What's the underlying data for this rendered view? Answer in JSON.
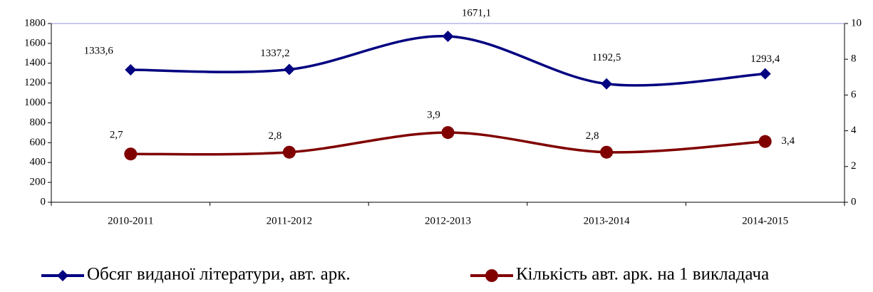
{
  "chart_data": {
    "type": "line",
    "categories": [
      "2010-2011",
      "2011-2012",
      "2012-2013",
      "2013-2014",
      "2014-2015"
    ],
    "series": [
      {
        "name": "Обсяг виданої літератури, авт. арк.",
        "color": "#000080",
        "marker": "diamond",
        "values": [
          1333.6,
          1337.2,
          1671.1,
          1192.5,
          1293.4
        ],
        "value_labels": [
          "1333,6",
          "1337,2",
          "1671,1",
          "1192,5",
          "1293,4"
        ]
      },
      {
        "name": "Кількість авт. арк. на 1 викладача",
        "color": "#800000",
        "marker": "circle",
        "axis": "y2",
        "values": [
          2.7,
          2.8,
          3.9,
          2.8,
          3.4
        ],
        "value_labels": [
          "2,7",
          "2,8",
          "3,9",
          "2,8",
          "3,4"
        ]
      }
    ],
    "ylim": [
      0,
      1800
    ],
    "yticks": [
      0,
      200,
      400,
      600,
      800,
      1000,
      1200,
      1400,
      1600,
      1800
    ],
    "y2lim": [
      0,
      10
    ],
    "y2ticks": [
      0,
      2,
      4,
      6,
      8,
      10
    ],
    "smooth": true,
    "legend": "bottom"
  }
}
